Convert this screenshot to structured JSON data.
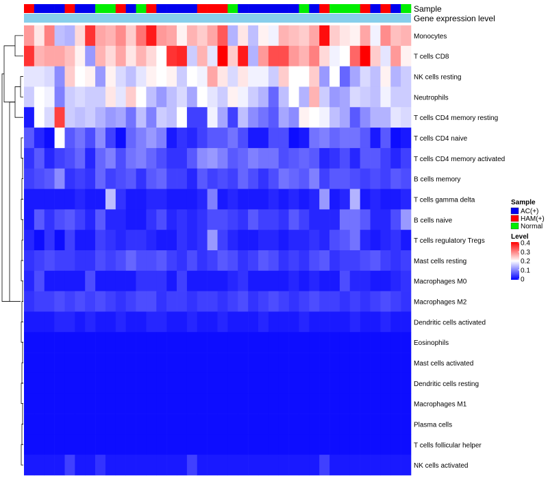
{
  "chart_data": {
    "type": "heatmap",
    "title": "",
    "annotation_tracks": [
      "Sample",
      "Gene expression level"
    ],
    "rows": [
      "Monocytes",
      "T cells CD8",
      "NK cells resting",
      "Neutrophils",
      "T cells CD4 memory resting",
      "T cells CD4 naive",
      "T cells CD4 memory activated",
      "B cells memory",
      "T cells gamma delta",
      "B cells naive",
      "T cells regulatory  Tregs",
      "Mast cells resting",
      "Macrophages M0",
      "Macrophages M2",
      "Dendritic cells activated",
      "Eosinophils",
      "Mast cells activated",
      "Dendritic cells resting",
      "Macrophages M1",
      "Plasma cells",
      "T cells follicular helper",
      "NK cells activated"
    ],
    "n_columns": 38,
    "sample_groups": [
      "HAM(+)",
      "AC(+)",
      "AC(+)",
      "AC(+)",
      "HAM(+)",
      "AC(+)",
      "AC(+)",
      "Normal",
      "Normal",
      "HAM(+)",
      "AC(+)",
      "Normal",
      "HAM(+)",
      "AC(+)",
      "AC(+)",
      "AC(+)",
      "AC(+)",
      "HAM(+)",
      "HAM(+)",
      "HAM(+)",
      "Normal",
      "AC(+)",
      "AC(+)",
      "AC(+)",
      "AC(+)",
      "AC(+)",
      "AC(+)",
      "Normal",
      "AC(+)",
      "HAM(+)",
      "Normal",
      "Normal",
      "Normal",
      "HAM(+)",
      "AC(+)",
      "HAM(+)",
      "AC(+)",
      "Normal"
    ],
    "color_scale": {
      "min": 0,
      "max": 0.4,
      "ticks": [
        0.4,
        0.3,
        0.2,
        0.1,
        0
      ],
      "low": "#0000ff",
      "mid": "#ffffff",
      "high": "#ff0000",
      "mid_value": 0.2
    },
    "values": [
      [
        0.28,
        0.22,
        0.3,
        0.15,
        0.14,
        0.23,
        0.36,
        0.27,
        0.26,
        0.29,
        0.24,
        0.31,
        0.38,
        0.28,
        0.27,
        0.21,
        0.26,
        0.24,
        0.27,
        0.33,
        0.14,
        0.22,
        0.15,
        0.21,
        0.19,
        0.26,
        0.25,
        0.24,
        0.27,
        0.39,
        0.24,
        0.22,
        0.21,
        0.27,
        0.19,
        0.29,
        0.25,
        0.26
      ],
      [
        0.36,
        0.26,
        0.27,
        0.27,
        0.25,
        0.21,
        0.12,
        0.26,
        0.23,
        0.27,
        0.22,
        0.26,
        0.23,
        0.2,
        0.36,
        0.37,
        0.16,
        0.26,
        0.18,
        0.4,
        0.24,
        0.38,
        0.14,
        0.28,
        0.34,
        0.34,
        0.28,
        0.26,
        0.3,
        0.23,
        0.19,
        0.2,
        0.32,
        0.4,
        0.24,
        0.18,
        0.28,
        0.21
      ],
      [
        0.18,
        0.18,
        0.17,
        0.11,
        0.24,
        0.2,
        0.21,
        0.12,
        0.21,
        0.17,
        0.15,
        0.18,
        0.21,
        0.2,
        0.21,
        0.16,
        0.2,
        0.19,
        0.27,
        0.22,
        0.17,
        0.22,
        0.19,
        0.19,
        0.16,
        0.24,
        0.2,
        0.2,
        0.24,
        0.12,
        0.2,
        0.08,
        0.13,
        0.17,
        0.15,
        0.21,
        0.14,
        0.16
      ],
      [
        0.16,
        0.2,
        0.19,
        0.1,
        0.16,
        0.17,
        0.16,
        0.16,
        0.22,
        0.18,
        0.24,
        0.2,
        0.15,
        0.12,
        0.15,
        0.17,
        0.13,
        0.2,
        0.18,
        0.16,
        0.21,
        0.19,
        0.16,
        0.14,
        0.08,
        0.15,
        0.2,
        0.14,
        0.26,
        0.16,
        0.12,
        0.13,
        0.17,
        0.16,
        0.15,
        0.19,
        0.16,
        0.16
      ],
      [
        0.02,
        0.2,
        0.17,
        0.35,
        0.16,
        0.15,
        0.16,
        0.14,
        0.12,
        0.13,
        0.09,
        0.15,
        0.1,
        0.16,
        0.15,
        0.2,
        0.05,
        0.05,
        0.19,
        0.13,
        0.05,
        0.15,
        0.11,
        0.09,
        0.07,
        0.13,
        0.11,
        0.21,
        0.2,
        0.19,
        0.15,
        0.13,
        0.07,
        0.11,
        0.14,
        0.14,
        0.18,
        0.17
      ],
      [
        0.07,
        0.03,
        0.01,
        0.2,
        0.07,
        0.09,
        0.06,
        0.11,
        0.05,
        0.01,
        0.08,
        0.1,
        0.12,
        0.1,
        0.02,
        0.04,
        0.03,
        0.05,
        0.07,
        0.07,
        0.09,
        0.06,
        0.02,
        0.02,
        0.06,
        0.06,
        0.01,
        0.02,
        0.09,
        0.1,
        0.08,
        0.09,
        0.09,
        0.07,
        0.02,
        0.07,
        0.01,
        0.02
      ],
      [
        0.04,
        0.07,
        0.03,
        0.05,
        0.06,
        0.08,
        0.03,
        0.08,
        0.1,
        0.06,
        0.09,
        0.1,
        0.08,
        0.06,
        0.04,
        0.04,
        0.07,
        0.11,
        0.12,
        0.1,
        0.07,
        0.08,
        0.1,
        0.09,
        0.09,
        0.06,
        0.07,
        0.08,
        0.07,
        0.03,
        0.04,
        0.06,
        0.03,
        0.07,
        0.07,
        0.05,
        0.03,
        0.05
      ],
      [
        0.05,
        0.06,
        0.07,
        0.11,
        0.04,
        0.05,
        0.04,
        0.08,
        0.05,
        0.06,
        0.07,
        0.04,
        0.07,
        0.08,
        0.05,
        0.05,
        0.03,
        0.07,
        0.05,
        0.06,
        0.05,
        0.08,
        0.06,
        0.04,
        0.06,
        0.09,
        0.08,
        0.07,
        0.1,
        0.05,
        0.07,
        0.07,
        0.06,
        0.05,
        0.06,
        0.05,
        0.07,
        0.06
      ],
      [
        0.02,
        0.02,
        0.02,
        0.02,
        0.02,
        0.03,
        0.02,
        0.02,
        0.15,
        0.04,
        0.02,
        0.02,
        0.03,
        0.03,
        0.02,
        0.02,
        0.02,
        0.03,
        0.1,
        0.02,
        0.03,
        0.02,
        0.02,
        0.02,
        0.03,
        0.02,
        0.03,
        0.02,
        0.03,
        0.12,
        0.02,
        0.03,
        0.14,
        0.02,
        0.03,
        0.02,
        0.02,
        0.03
      ],
      [
        0.02,
        0.07,
        0.04,
        0.06,
        0.07,
        0.05,
        0.03,
        0.07,
        0.03,
        0.03,
        0.02,
        0.02,
        0.04,
        0.06,
        0.03,
        0.04,
        0.03,
        0.04,
        0.06,
        0.06,
        0.05,
        0.04,
        0.07,
        0.05,
        0.05,
        0.04,
        0.07,
        0.05,
        0.03,
        0.03,
        0.03,
        0.09,
        0.09,
        0.07,
        0.03,
        0.03,
        0.06,
        0.12
      ],
      [
        0.03,
        0.01,
        0.04,
        0.01,
        0.05,
        0.02,
        0.02,
        0.05,
        0.04,
        0.03,
        0.04,
        0.04,
        0.03,
        0.02,
        0.02,
        0.04,
        0.03,
        0.04,
        0.12,
        0.05,
        0.03,
        0.02,
        0.02,
        0.03,
        0.03,
        0.02,
        0.03,
        0.03,
        0.04,
        0.03,
        0.06,
        0.07,
        0.09,
        0.03,
        0.02,
        0.03,
        0.04,
        0.02
      ],
      [
        0.04,
        0.05,
        0.06,
        0.05,
        0.05,
        0.04,
        0.04,
        0.06,
        0.05,
        0.06,
        0.08,
        0.06,
        0.06,
        0.07,
        0.05,
        0.04,
        0.06,
        0.04,
        0.05,
        0.07,
        0.06,
        0.04,
        0.05,
        0.07,
        0.06,
        0.04,
        0.05,
        0.04,
        0.06,
        0.07,
        0.04,
        0.05,
        0.05,
        0.06,
        0.07,
        0.05,
        0.04,
        0.05
      ],
      [
        0.03,
        0.06,
        0.02,
        0.02,
        0.02,
        0.02,
        0.06,
        0.02,
        0.02,
        0.02,
        0.02,
        0.04,
        0.04,
        0.04,
        0.02,
        0.05,
        0.02,
        0.02,
        0.02,
        0.02,
        0.03,
        0.04,
        0.02,
        0.02,
        0.02,
        0.02,
        0.03,
        0.02,
        0.03,
        0.02,
        0.02,
        0.06,
        0.03,
        0.03,
        0.02,
        0.02,
        0.03,
        0.04
      ],
      [
        0.04,
        0.05,
        0.05,
        0.06,
        0.05,
        0.06,
        0.05,
        0.06,
        0.05,
        0.04,
        0.05,
        0.06,
        0.06,
        0.04,
        0.05,
        0.05,
        0.04,
        0.05,
        0.05,
        0.04,
        0.05,
        0.06,
        0.04,
        0.05,
        0.06,
        0.05,
        0.04,
        0.05,
        0.06,
        0.05,
        0.05,
        0.04,
        0.05,
        0.04,
        0.05,
        0.06,
        0.05,
        0.04
      ],
      [
        0.02,
        0.02,
        0.02,
        0.03,
        0.03,
        0.02,
        0.03,
        0.02,
        0.02,
        0.03,
        0.02,
        0.02,
        0.03,
        0.03,
        0.02,
        0.02,
        0.03,
        0.02,
        0.02,
        0.03,
        0.02,
        0.02,
        0.02,
        0.03,
        0.02,
        0.02,
        0.02,
        0.03,
        0.02,
        0.02,
        0.02,
        0.02,
        0.03,
        0.02,
        0.02,
        0.03,
        0.02,
        0.02
      ],
      [
        0.01,
        0.01,
        0.01,
        0.01,
        0.01,
        0.01,
        0.01,
        0.01,
        0.01,
        0.01,
        0.01,
        0.01,
        0.01,
        0.01,
        0.01,
        0.01,
        0.01,
        0.01,
        0.01,
        0.01,
        0.01,
        0.01,
        0.01,
        0.01,
        0.01,
        0.01,
        0.01,
        0.01,
        0.01,
        0.01,
        0.01,
        0.01,
        0.01,
        0.01,
        0.01,
        0.01,
        0.01,
        0.01
      ],
      [
        0.01,
        0.01,
        0.01,
        0.01,
        0.01,
        0.01,
        0.01,
        0.01,
        0.01,
        0.01,
        0.01,
        0.01,
        0.01,
        0.01,
        0.01,
        0.01,
        0.01,
        0.01,
        0.01,
        0.01,
        0.01,
        0.01,
        0.01,
        0.01,
        0.01,
        0.01,
        0.01,
        0.01,
        0.01,
        0.01,
        0.01,
        0.01,
        0.01,
        0.01,
        0.01,
        0.01,
        0.01,
        0.01
      ],
      [
        0.01,
        0.01,
        0.01,
        0.01,
        0.01,
        0.01,
        0.01,
        0.01,
        0.01,
        0.01,
        0.01,
        0.01,
        0.01,
        0.01,
        0.01,
        0.01,
        0.01,
        0.01,
        0.01,
        0.01,
        0.01,
        0.01,
        0.01,
        0.01,
        0.01,
        0.01,
        0.01,
        0.01,
        0.01,
        0.01,
        0.01,
        0.01,
        0.01,
        0.01,
        0.01,
        0.01,
        0.01,
        0.01
      ],
      [
        0.01,
        0.01,
        0.01,
        0.01,
        0.01,
        0.01,
        0.01,
        0.01,
        0.01,
        0.01,
        0.01,
        0.01,
        0.01,
        0.01,
        0.01,
        0.01,
        0.01,
        0.01,
        0.01,
        0.01,
        0.01,
        0.01,
        0.01,
        0.01,
        0.01,
        0.01,
        0.01,
        0.01,
        0.01,
        0.01,
        0.01,
        0.01,
        0.01,
        0.01,
        0.01,
        0.01,
        0.01,
        0.01
      ],
      [
        0.01,
        0.01,
        0.01,
        0.01,
        0.01,
        0.01,
        0.01,
        0.01,
        0.01,
        0.01,
        0.01,
        0.01,
        0.01,
        0.01,
        0.01,
        0.01,
        0.01,
        0.01,
        0.01,
        0.01,
        0.01,
        0.01,
        0.01,
        0.01,
        0.01,
        0.01,
        0.01,
        0.01,
        0.01,
        0.01,
        0.01,
        0.01,
        0.01,
        0.01,
        0.01,
        0.01,
        0.01,
        0.01
      ],
      [
        0.01,
        0.01,
        0.01,
        0.01,
        0.01,
        0.01,
        0.01,
        0.01,
        0.01,
        0.01,
        0.01,
        0.01,
        0.01,
        0.01,
        0.01,
        0.01,
        0.01,
        0.01,
        0.01,
        0.01,
        0.01,
        0.01,
        0.01,
        0.01,
        0.01,
        0.01,
        0.01,
        0.01,
        0.01,
        0.01,
        0.01,
        0.01,
        0.01,
        0.01,
        0.01,
        0.01,
        0.01,
        0.01
      ],
      [
        0.02,
        0.02,
        0.02,
        0.02,
        0.05,
        0.02,
        0.02,
        0.04,
        0.02,
        0.02,
        0.02,
        0.02,
        0.02,
        0.02,
        0.02,
        0.02,
        0.05,
        0.02,
        0.02,
        0.02,
        0.02,
        0.02,
        0.02,
        0.02,
        0.02,
        0.02,
        0.02,
        0.02,
        0.02,
        0.05,
        0.02,
        0.02,
        0.02,
        0.02,
        0.02,
        0.02,
        0.02,
        0.02
      ]
    ],
    "legend": {
      "sample_title": "Sample",
      "sample_entries": [
        {
          "label": "AC(+)",
          "color": "#0000ee"
        },
        {
          "label": "HAM(+)",
          "color": "#ff0000"
        },
        {
          "label": "Normal",
          "color": "#00ee00"
        }
      ],
      "level_title": "Level",
      "gene_expression_color": "#87ceeb"
    }
  }
}
